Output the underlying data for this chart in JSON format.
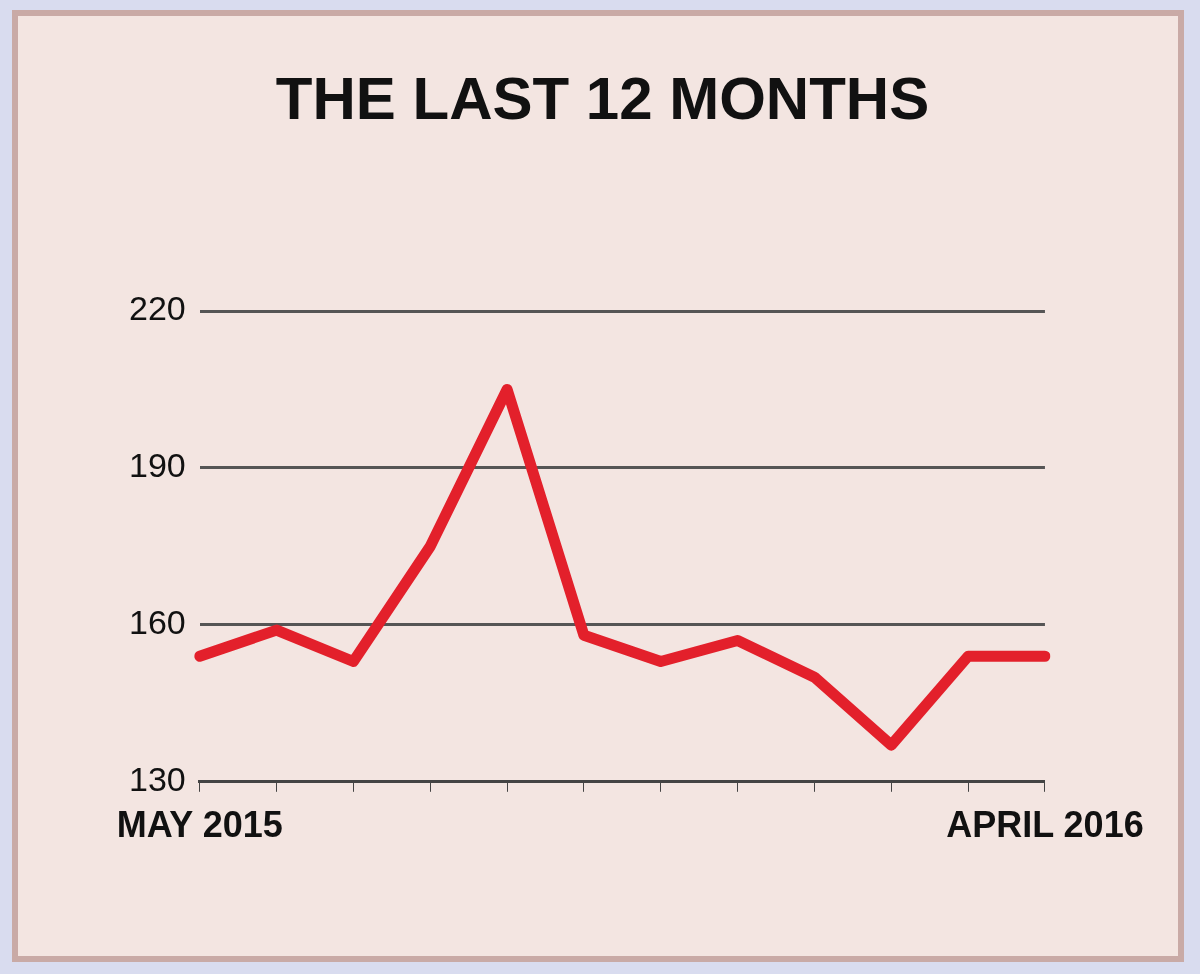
{
  "chart_data": {
    "type": "line",
    "title": "THE LAST 12 MONTHS",
    "categories": [
      "MAY 2015",
      null,
      null,
      null,
      null,
      null,
      null,
      null,
      null,
      null,
      null,
      "APRIL 2016"
    ],
    "series": [
      {
        "color": "#e3202b",
        "values": [
          154,
          159,
          153,
          175,
          205,
          158,
          153,
          157,
          150,
          137,
          154,
          154
        ]
      }
    ],
    "ylim": [
      130,
      220
    ],
    "yticks": [
      130,
      160,
      190,
      220
    ],
    "grid": "y",
    "legend": false,
    "marker": "none",
    "line_style": "solid"
  }
}
